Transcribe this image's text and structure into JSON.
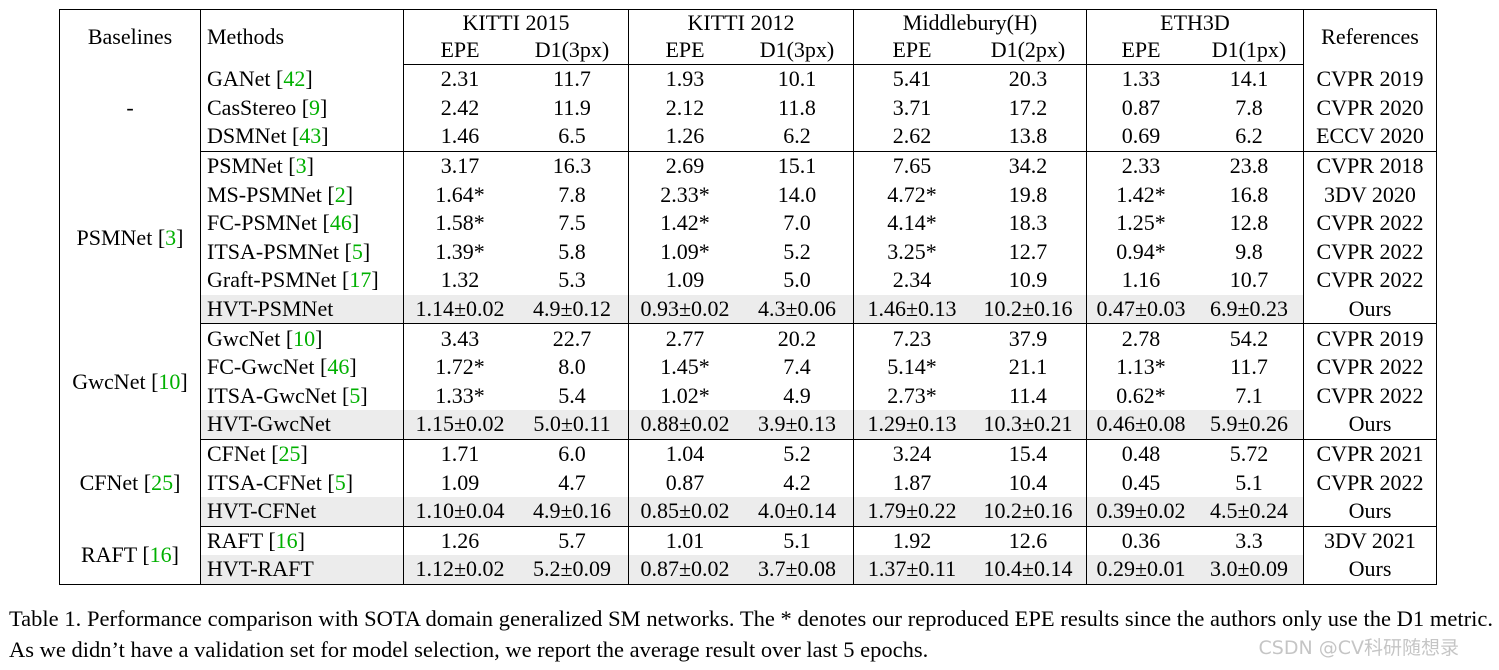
{
  "table": {
    "header": {
      "baselines": "Baselines",
      "methods": "Methods",
      "references": "References",
      "datasets": [
        {
          "name": "KITTI 2015",
          "metrics": [
            "EPE",
            "D1(3px)"
          ]
        },
        {
          "name": "KITTI 2012",
          "metrics": [
            "EPE",
            "D1(3px)"
          ]
        },
        {
          "name": "Middlebury(H)",
          "metrics": [
            "EPE",
            "D1(2px)"
          ]
        },
        {
          "name": "ETH3D",
          "metrics": [
            "EPE",
            "D1(1px)"
          ]
        }
      ]
    },
    "groups": [
      {
        "baseline": "-",
        "baseline_cite": "",
        "rows": [
          {
            "method": "GANet",
            "cite": "42",
            "values": [
              "2.31",
              "11.7",
              "1.93",
              "10.1",
              "5.41",
              "20.3",
              "1.33",
              "14.1"
            ],
            "ref": "CVPR 2019"
          },
          {
            "method": "CasStereo",
            "cite": "9",
            "values": [
              "2.42",
              "11.9",
              "2.12",
              "11.8",
              "3.71",
              "17.2",
              "0.87",
              "7.8"
            ],
            "ref": "CVPR 2020"
          },
          {
            "method": "DSMNet",
            "cite": "43",
            "values": [
              "1.46",
              "6.5",
              "1.26",
              "6.2",
              "2.62",
              "13.8",
              "0.69",
              "6.2"
            ],
            "ref": "ECCV 2020"
          }
        ]
      },
      {
        "baseline": "PSMNet",
        "baseline_cite": "3",
        "rows": [
          {
            "method": "PSMNet",
            "cite": "3",
            "values": [
              "3.17",
              "16.3",
              "2.69",
              "15.1",
              "7.65",
              "34.2",
              "2.33",
              "23.8"
            ],
            "ref": "CVPR 2018"
          },
          {
            "method": "MS-PSMNet",
            "cite": "2",
            "values": [
              "1.64*",
              "7.8",
              "2.33*",
              "14.0",
              "4.72*",
              "19.8",
              "1.42*",
              "16.8"
            ],
            "ref": "3DV 2020"
          },
          {
            "method": "FC-PSMNet",
            "cite": "46",
            "values": [
              "1.58*",
              "7.5",
              "1.42*",
              "7.0",
              "4.14*",
              "18.3",
              "1.25*",
              "12.8"
            ],
            "ref": "CVPR 2022"
          },
          {
            "method": "ITSA-PSMNet",
            "cite": "5",
            "values": [
              "1.39*",
              "5.8",
              "1.09*",
              "5.2",
              "3.25*",
              "12.7",
              "0.94*",
              "9.8"
            ],
            "ref": "CVPR 2022"
          },
          {
            "method": "Graft-PSMNet",
            "cite": "17",
            "values": [
              "1.32",
              "5.3",
              "1.09",
              "5.0",
              "2.34",
              "10.9",
              "1.16",
              "10.7"
            ],
            "ref": "CVPR 2022"
          },
          {
            "method": "HVT-PSMNet",
            "cite": "",
            "ours": true,
            "values": [
              "1.14±0.02",
              "4.9±0.12",
              "0.93±0.02",
              "4.3±0.06",
              "1.46±0.13",
              "10.2±0.16",
              "0.47±0.03",
              "6.9±0.23"
            ],
            "bold": [
              true,
              true,
              true,
              true,
              true,
              true,
              true,
              true
            ],
            "ref": "Ours"
          }
        ]
      },
      {
        "baseline": "GwcNet",
        "baseline_cite": "10",
        "rows": [
          {
            "method": "GwcNet",
            "cite": "10",
            "values": [
              "3.43",
              "22.7",
              "2.77",
              "20.2",
              "7.23",
              "37.9",
              "2.78",
              "54.2"
            ],
            "ref": "CVPR 2019"
          },
          {
            "method": "FC-GwcNet",
            "cite": "46",
            "values": [
              "1.72*",
              "8.0",
              "1.45*",
              "7.4",
              "5.14*",
              "21.1",
              "1.13*",
              "11.7"
            ],
            "ref": "CVPR 2022"
          },
          {
            "method": "ITSA-GwcNet",
            "cite": "5",
            "values": [
              "1.33*",
              "5.4",
              "1.02*",
              "4.9",
              "2.73*",
              "11.4",
              "0.62*",
              "7.1"
            ],
            "ref": "CVPR 2022"
          },
          {
            "method": "HVT-GwcNet",
            "cite": "",
            "ours": true,
            "values": [
              "1.15±0.02",
              "5.0±0.11",
              "0.88±0.02",
              "3.9±0.13",
              "1.29±0.13",
              "10.3±0.21",
              "0.46±0.08",
              "5.9±0.26"
            ],
            "bold": [
              true,
              true,
              true,
              true,
              true,
              true,
              true,
              true
            ],
            "ref": "Ours"
          }
        ]
      },
      {
        "baseline": "CFNet",
        "baseline_cite": "25",
        "rows": [
          {
            "method": "CFNet",
            "cite": "25",
            "values": [
              "1.71",
              "6.0",
              "1.04",
              "5.2",
              "3.24",
              "15.4",
              "0.48",
              "5.72"
            ],
            "ref": "CVPR 2021"
          },
          {
            "method": "ITSA-CFNet",
            "cite": "5",
            "values": [
              "1.09",
              "4.7",
              "0.87",
              "4.2",
              "1.87",
              "10.4",
              "0.45",
              "5.1"
            ],
            "bold": [
              true,
              true,
              false,
              false,
              false,
              false,
              false,
              false
            ],
            "ref": "CVPR 2022"
          },
          {
            "method": "HVT-CFNet",
            "cite": "",
            "ours": true,
            "values": [
              "1.10±0.04",
              "4.9±0.16",
              "0.85±0.02",
              "4.0±0.14",
              "1.79±0.22",
              "10.2±0.16",
              "0.39±0.02",
              "4.5±0.24"
            ],
            "bold": [
              false,
              false,
              true,
              true,
              true,
              true,
              true,
              true
            ],
            "ref": "Ours"
          }
        ]
      },
      {
        "baseline": "RAFT",
        "baseline_cite": "16",
        "rows": [
          {
            "method": "RAFT",
            "cite": "16",
            "values": [
              "1.26",
              "5.7",
              "1.01",
              "5.1",
              "1.92",
              "12.6",
              "0.36",
              "3.3"
            ],
            "ref": "3DV 2021"
          },
          {
            "method": "HVT-RAFT",
            "cite": "",
            "ours": true,
            "values": [
              "1.12±0.02",
              "5.2±0.09",
              "0.87±0.02",
              "3.7±0.08",
              "1.37±0.11",
              "10.4±0.14",
              "0.29±0.01",
              "3.0±0.09"
            ],
            "bold": [
              true,
              true,
              true,
              true,
              true,
              true,
              true,
              true
            ],
            "ref": "Ours"
          }
        ]
      }
    ]
  },
  "caption": "Table 1. Performance comparison with SOTA domain generalized SM networks. The * denotes our reproduced EPE results since the authors only use the D1 metric. As we didn’t have a validation set for model selection, we report the average result over last 5 epochs.",
  "watermark": "CSDN @CV科研随想录"
}
